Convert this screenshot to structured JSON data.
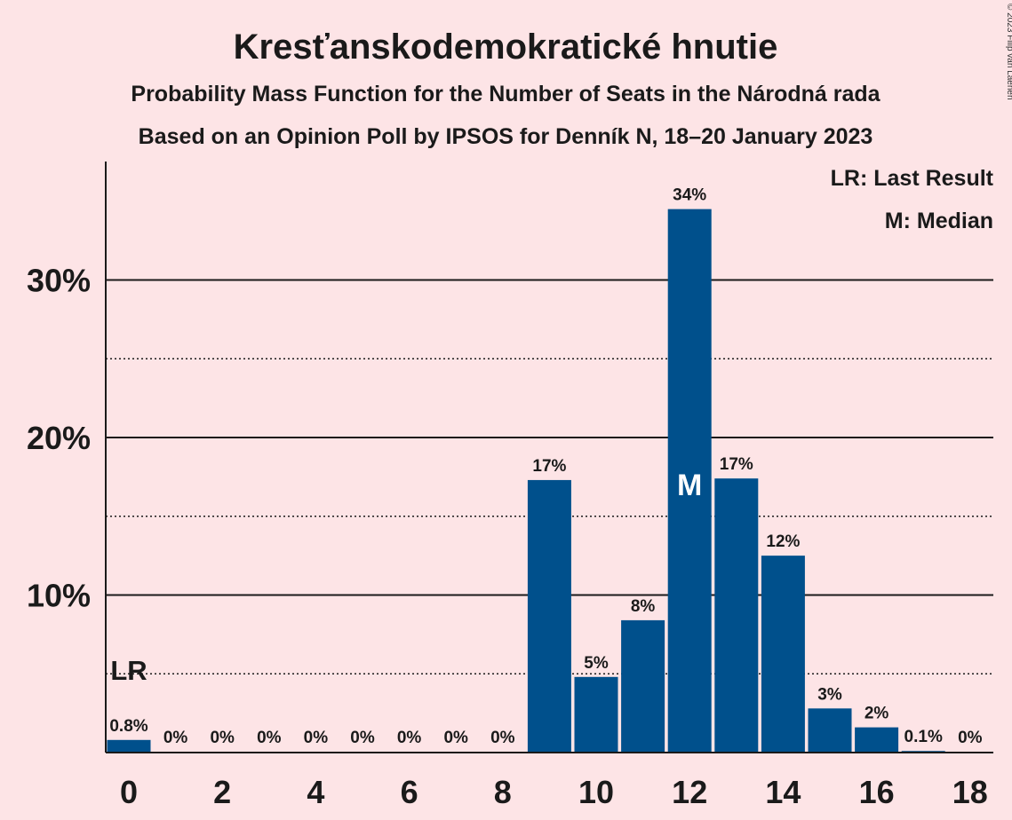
{
  "title": "Kresťanskodemokratické hnutie",
  "subtitle1": "Probability Mass Function for the Number of Seats in the Národná rada",
  "subtitle2": "Based on an Opinion Poll by IPSOS for Denník N, 18–20 January 2023",
  "copyright": "© 2023 Filip van Laenen",
  "legend": {
    "lr": "LR: Last Result",
    "m": "M: Median"
  },
  "colors": {
    "bar": "#00508c",
    "background": "#fde4e6",
    "text": "#1a1a1a"
  },
  "chart_data": {
    "type": "bar",
    "x": [
      0,
      1,
      2,
      3,
      4,
      5,
      6,
      7,
      8,
      9,
      10,
      11,
      12,
      13,
      14,
      15,
      16,
      17,
      18
    ],
    "values": [
      0.8,
      0,
      0,
      0,
      0,
      0,
      0,
      0,
      0,
      17.3,
      4.8,
      8.4,
      34.5,
      17.4,
      12.5,
      2.8,
      1.6,
      0.1,
      0
    ],
    "labels": [
      "0.8%",
      "0%",
      "0%",
      "0%",
      "0%",
      "0%",
      "0%",
      "0%",
      "0%",
      "17%",
      "5%",
      "8%",
      "34%",
      "17%",
      "12%",
      "3%",
      "2%",
      "0.1%",
      "0%"
    ],
    "xticks": [
      "0",
      "2",
      "4",
      "6",
      "8",
      "10",
      "12",
      "14",
      "16",
      "18"
    ],
    "yticks": [
      "10%",
      "20%",
      "30%"
    ],
    "ylim": [
      0,
      37.5
    ],
    "last_result": 0,
    "median": 12,
    "lr_label": "LR",
    "median_label": "M",
    "grid": true,
    "legend_position": "top-right"
  }
}
